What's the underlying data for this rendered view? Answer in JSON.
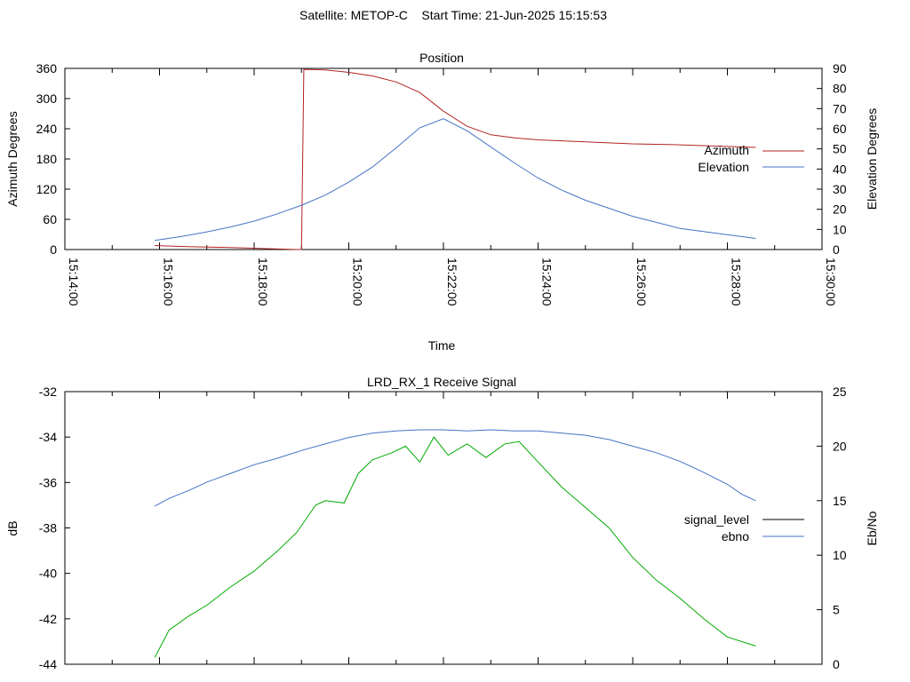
{
  "page_title": "Satellite: METOP-C    Start Time: 21-Jun-2025 15:15:53",
  "chart_data": [
    {
      "type": "line",
      "title": "Position",
      "xlabel": "Time",
      "ylabel": "Azimuth Degrees",
      "y2label": "Elevation Degrees",
      "xticks": [
        "15:14:00",
        "15:16:00",
        "15:18:00",
        "15:20:00",
        "15:22:00",
        "15:24:00",
        "15:26:00",
        "15:28:00",
        "15:30:00"
      ],
      "xlim_minutes": [
        0,
        16
      ],
      "ylim": [
        0,
        360
      ],
      "yticks": [
        "0",
        "60",
        "120",
        "180",
        "240",
        "300",
        "360"
      ],
      "y2lim": [
        0,
        90
      ],
      "y2ticks": [
        "0",
        "10",
        "20",
        "30",
        "40",
        "50",
        "60",
        "70",
        "80",
        "90"
      ],
      "legend_position": "right",
      "series": [
        {
          "name": "Azimuth",
          "axis": "y",
          "color": "#b22222",
          "x": [
            1.9,
            2.5,
            3.0,
            3.5,
            4.9,
            5.0,
            5.05,
            5.5,
            6.0,
            6.5,
            7.0,
            7.5,
            8.0,
            8.5,
            9.0,
            9.5,
            10.0,
            11.0,
            12.0,
            13.0,
            14.6
          ],
          "y": [
            8,
            6,
            5,
            4,
            0,
            0,
            358,
            357,
            352,
            345,
            333,
            312,
            275,
            245,
            228,
            222,
            218,
            214,
            210,
            208,
            203
          ]
        },
        {
          "name": "Elevation",
          "axis": "y2",
          "color": "#4472c4",
          "x": [
            1.9,
            2.5,
            3.0,
            3.5,
            4.0,
            4.5,
            5.0,
            5.5,
            6.0,
            6.5,
            7.0,
            7.5,
            8.0,
            8.5,
            9.0,
            9.5,
            10.0,
            10.5,
            11.0,
            12.0,
            13.0,
            14.6
          ],
          "y": [
            4.5,
            6.6,
            8.8,
            11.2,
            14.1,
            17.8,
            22.0,
            27.0,
            33.5,
            41.0,
            50.5,
            60.5,
            65.0,
            59.0,
            51.0,
            43.0,
            35.5,
            29.5,
            24.5,
            16.5,
            10.5,
            5.5
          ]
        }
      ]
    },
    {
      "type": "line",
      "title": "LRD_RX_1 Receive Signal",
      "xlabel": "",
      "ylabel": "dB",
      "y2label": "Eb/No",
      "ylim": [
        -44,
        -32
      ],
      "yticks": [
        "-44",
        "-42",
        "-40",
        "-38",
        "-36",
        "-34",
        "-32"
      ],
      "y2lim": [
        0,
        25
      ],
      "y2ticks": [
        "0",
        "5",
        "10",
        "15",
        "20",
        "25"
      ],
      "legend_position": "right",
      "series": [
        {
          "name": "signal_level",
          "axis": "y",
          "color": "#00aa00",
          "x": [
            1.9,
            2.2,
            2.6,
            3.0,
            3.5,
            4.0,
            4.5,
            4.9,
            5.3,
            5.5,
            5.9,
            6.2,
            6.5,
            6.9,
            7.2,
            7.5,
            7.8,
            8.1,
            8.5,
            8.9,
            9.3,
            9.6,
            10.0,
            10.5,
            11.0,
            11.5,
            12.0,
            12.5,
            13.0,
            13.5,
            14.0,
            14.6
          ],
          "y": [
            -43.7,
            -42.5,
            -41.9,
            -41.4,
            -40.6,
            -39.9,
            -39.0,
            -38.2,
            -37.0,
            -36.8,
            -36.9,
            -35.6,
            -35.0,
            -34.7,
            -34.4,
            -35.1,
            -34.0,
            -34.8,
            -34.3,
            -34.9,
            -34.3,
            -34.2,
            -35.1,
            -36.2,
            -37.1,
            -38.0,
            -39.3,
            -40.3,
            -41.1,
            -42.0,
            -42.8,
            -43.2
          ]
        },
        {
          "name": "ebno",
          "axis": "y2",
          "color": "#4472c4",
          "x": [
            1.9,
            2.2,
            2.6,
            3.0,
            3.5,
            4.0,
            4.5,
            5.0,
            5.5,
            6.0,
            6.5,
            7.0,
            7.5,
            8.0,
            8.5,
            9.0,
            9.5,
            10.0,
            10.5,
            11.0,
            11.5,
            12.0,
            12.5,
            13.0,
            13.5,
            14.0,
            14.3,
            14.6
          ],
          "y": [
            14.5,
            15.2,
            15.9,
            16.7,
            17.5,
            18.3,
            18.9,
            19.6,
            20.2,
            20.8,
            21.2,
            21.4,
            21.5,
            21.5,
            21.4,
            21.5,
            21.4,
            21.4,
            21.2,
            21.0,
            20.6,
            20.0,
            19.4,
            18.6,
            17.6,
            16.5,
            15.6,
            15.0
          ]
        }
      ]
    }
  ]
}
